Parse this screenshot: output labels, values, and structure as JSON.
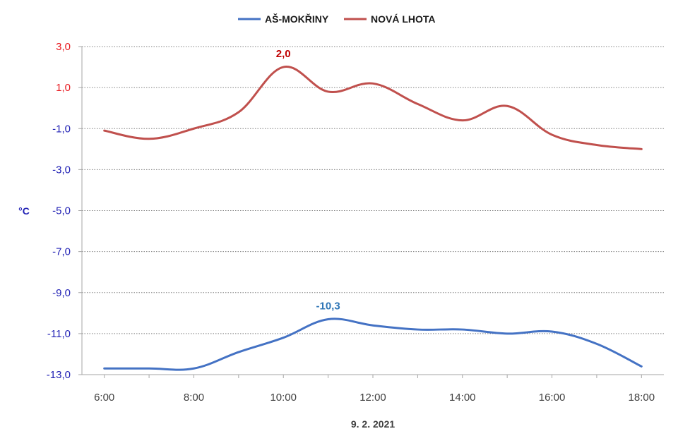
{
  "chart_data": {
    "type": "line",
    "title": "",
    "xlabel": "9. 2. 2021",
    "ylabel": "°C",
    "x_ticks": [
      "6:00",
      "8:00",
      "10:00",
      "12:00",
      "14:00",
      "16:00",
      "18:00"
    ],
    "x_hours": [
      6,
      7,
      8,
      9,
      10,
      11,
      12,
      13,
      14,
      15,
      16,
      17,
      18
    ],
    "ylim": [
      -13,
      3
    ],
    "y_ticks": [
      "3,0",
      "1,0",
      "-1,0",
      "-3,0",
      "-5,0",
      "-7,0",
      "-9,0",
      "-11,0",
      "-13,0"
    ],
    "y_tick_values": [
      3,
      1,
      -1,
      -3,
      -5,
      -7,
      -9,
      -11,
      -13
    ],
    "y_tick_colors": {
      "positive": "#e8191f",
      "negative": "#1f1fb4"
    },
    "grid": true,
    "legend_position": "top-center",
    "series": [
      {
        "name": "AŠ-MOKŘINY",
        "color": "#4472c4",
        "values": [
          -12.7,
          -12.7,
          -12.7,
          -11.9,
          -11.2,
          -10.3,
          -10.6,
          -10.8,
          -10.8,
          -11.0,
          -10.9,
          -11.5,
          -12.6
        ],
        "annotation": {
          "text": "-10,3",
          "index": 5,
          "color": "#2e75b6"
        }
      },
      {
        "name": "NOVÁ LHOTA",
        "color": "#c0504d",
        "values": [
          -1.1,
          -1.5,
          -1.0,
          -0.2,
          2.0,
          0.8,
          1.2,
          0.2,
          -0.6,
          0.1,
          -1.3,
          -1.8,
          -2.0
        ],
        "annotation": {
          "text": "2,0",
          "index": 4,
          "color": "#c00000"
        }
      }
    ]
  }
}
